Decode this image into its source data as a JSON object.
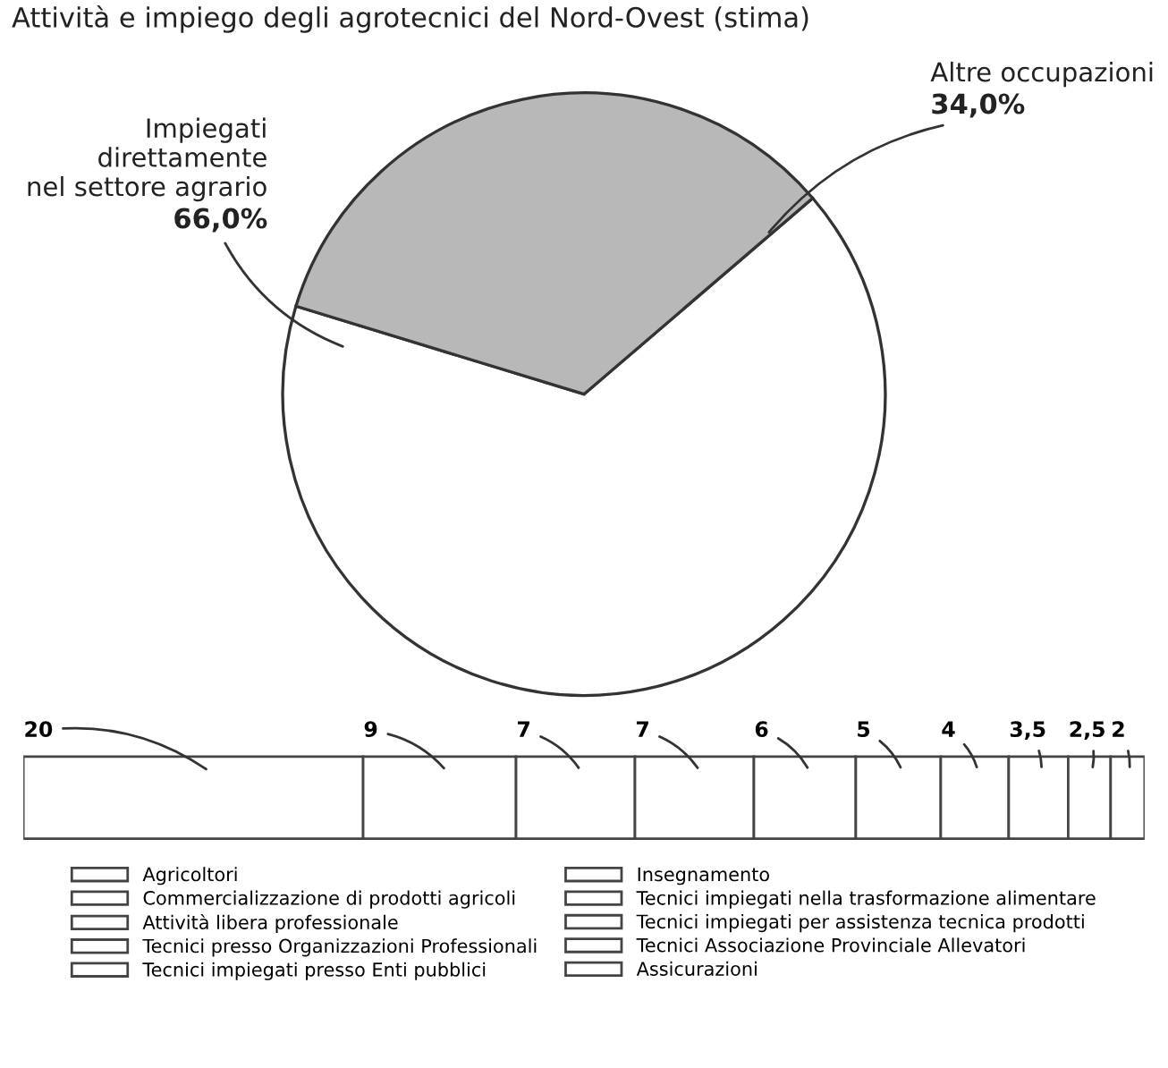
{
  "chart_data": [
    {
      "type": "pie",
      "title": "Attività e impiego degli agrotecnici del Nord-Ovest (stima)",
      "categories": [
        "Impiegati\ndirettamente\nnel settore agrario",
        "Altre occupazioni"
      ],
      "values": [
        66.0,
        34.0
      ],
      "colors": [
        "#ffffff",
        "#b8b8b8"
      ],
      "value_labels": [
        "66,0%",
        "34,0%"
      ]
    },
    {
      "type": "bar",
      "orientation": "horizontal",
      "stacked": true,
      "categories": [
        null
      ],
      "legend": "bottom",
      "series": [
        {
          "name": "Agricoltori",
          "color": "#ffffff",
          "values": [
            20
          ],
          "value_labels": [
            "20"
          ]
        },
        {
          "name": "Commercializzazione di prodotti agricoli",
          "color": "#ffffff",
          "values": [
            9
          ],
          "value_labels": [
            "9"
          ]
        },
        {
          "name": "Attività libera professionale",
          "color": "#ffffff",
          "values": [
            7
          ],
          "value_labels": [
            "7"
          ]
        },
        {
          "name": "Tecnici presso Organizzazioni Professionali",
          "color": "#ffffff",
          "values": [
            7
          ],
          "value_labels": [
            "7"
          ]
        },
        {
          "name": "Tecnici impiegati presso Enti pubblici",
          "color": "#ffffff",
          "values": [
            6
          ],
          "value_labels": [
            "6"
          ]
        },
        {
          "name": "Insegnamento",
          "color": "#ffffff",
          "values": [
            5
          ],
          "value_labels": [
            "5"
          ]
        },
        {
          "name": "Tecnici impiegati nella trasformazione alimentare",
          "color": "#ffffff",
          "values": [
            4
          ],
          "value_labels": [
            "4"
          ]
        },
        {
          "name": "Tecnici impiegati per assistenza tecnica prodotti",
          "color": "#ffffff",
          "values": [
            3.5
          ],
          "value_labels": [
            "3,5"
          ]
        },
        {
          "name": "Tecnici Associazione Provinciale Allevatori",
          "color": "#ffffff",
          "values": [
            2.5
          ],
          "value_labels": [
            "2,5"
          ]
        },
        {
          "name": "Assicurazioni",
          "color": "#ffffff",
          "values": [
            2
          ],
          "value_labels": [
            "2"
          ]
        }
      ]
    }
  ]
}
